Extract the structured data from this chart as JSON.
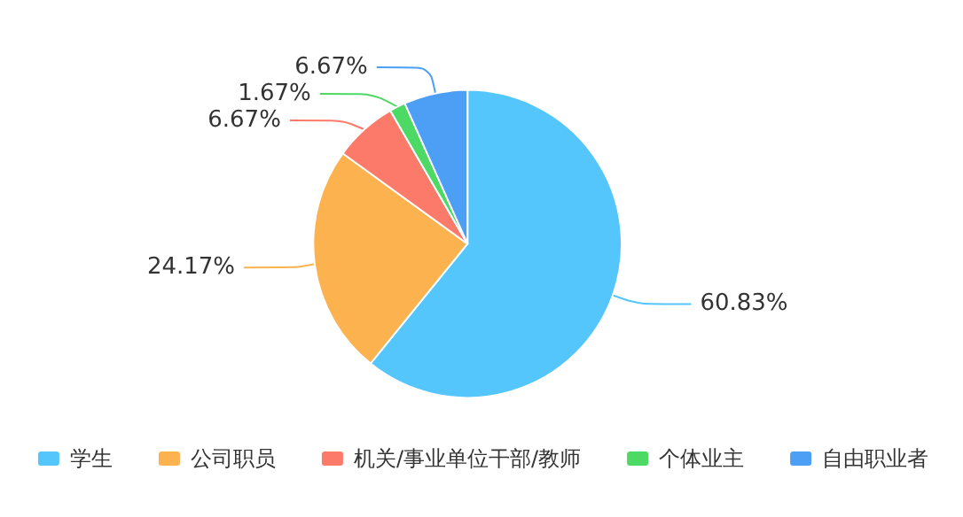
{
  "chart_data": {
    "type": "pie",
    "categories": [
      "学生",
      "公司职员",
      "机关/事业单位干部/教师",
      "个体业主",
      "自由职业者"
    ],
    "values": [
      60.83,
      24.17,
      6.67,
      1.67,
      6.67
    ],
    "value_labels": [
      "60.83%",
      "24.17%",
      "6.67%",
      "1.67%",
      "6.67%"
    ],
    "colors": [
      "#55c6fc",
      "#fcb24f",
      "#fc7a6a",
      "#4cd964",
      "#4c9ff5"
    ],
    "legend": "bottom"
  }
}
